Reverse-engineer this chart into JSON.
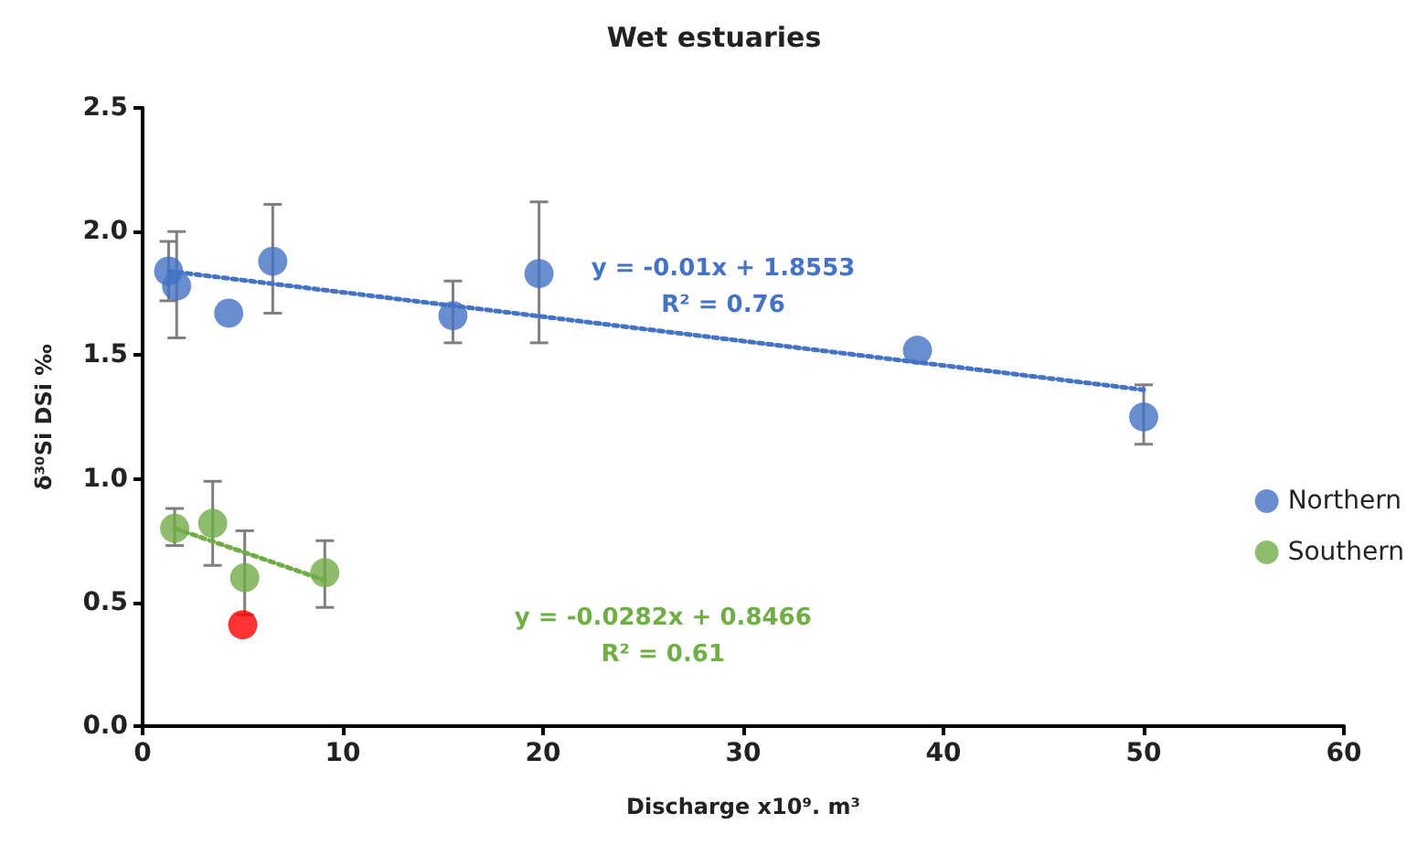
{
  "chart_data": {
    "type": "scatter",
    "title": "Wet estuaries",
    "xlabel": "Discharge x10⁹. m³",
    "ylabel": "δ³⁰Si DSi ‰",
    "series": [
      {
        "name": "Northern",
        "color": "#4472c4",
        "x": [
          1.3,
          1.7,
          4.3,
          6.5,
          15.5,
          19.8,
          38.7,
          50
        ],
        "values": [
          1.84,
          1.78,
          1.67,
          1.88,
          1.66,
          1.83,
          1.52,
          1.25
        ],
        "errors": [
          [
            1.72,
            1.96
          ],
          [
            1.57,
            2.0
          ],
          null,
          [
            1.67,
            2.11
          ],
          [
            1.55,
            1.8
          ],
          [
            1.55,
            2.12
          ],
          null,
          [
            1.14,
            1.38
          ]
        ]
      },
      {
        "name": "Southern",
        "color": "#70ad47",
        "x": [
          1.6,
          3.5,
          5.1,
          9.1
        ],
        "values": [
          0.8,
          0.82,
          0.6,
          0.62
        ],
        "errors": [
          [
            0.73,
            0.88
          ],
          [
            0.65,
            0.99
          ],
          [
            0.45,
            0.79
          ],
          [
            0.48,
            0.75
          ]
        ]
      },
      {
        "color": "#ff0000",
        "x": [
          5.0
        ],
        "values": [
          0.41
        ]
      },
      {
        "type": "line",
        "color": "#4472c4",
        "line_style": "dotted",
        "marker": "none",
        "x": [
          1.3,
          50
        ],
        "values": [
          1.84,
          1.36
        ]
      },
      {
        "type": "line",
        "color": "#70ad47",
        "line_style": "dotted",
        "marker": "none",
        "x": [
          1.6,
          9.1
        ],
        "values": [
          0.8,
          0.59
        ]
      }
    ],
    "annotations": [
      "y = -0.01x + 1.8553",
      "R² = 0.76",
      "y = -0.0282x + 0.8466",
      "R² = 0.61"
    ],
    "xlim": [
      0,
      60
    ],
    "xticks": [
      0,
      10,
      20,
      30,
      40,
      50,
      60
    ],
    "ylim": [
      0,
      2.5
    ],
    "yticks": [
      {
        "value": 0,
        "label": "0.0"
      },
      {
        "value": 0.5,
        "label": "0.5"
      },
      {
        "value": 1,
        "label": "1.0"
      },
      {
        "value": 1.5,
        "label": "1.5"
      },
      {
        "value": 2,
        "label": "2.0"
      },
      {
        "value": 2.5,
        "label": "2.5"
      }
    ],
    "grid": false,
    "legend": "right",
    "marker": "circle"
  }
}
